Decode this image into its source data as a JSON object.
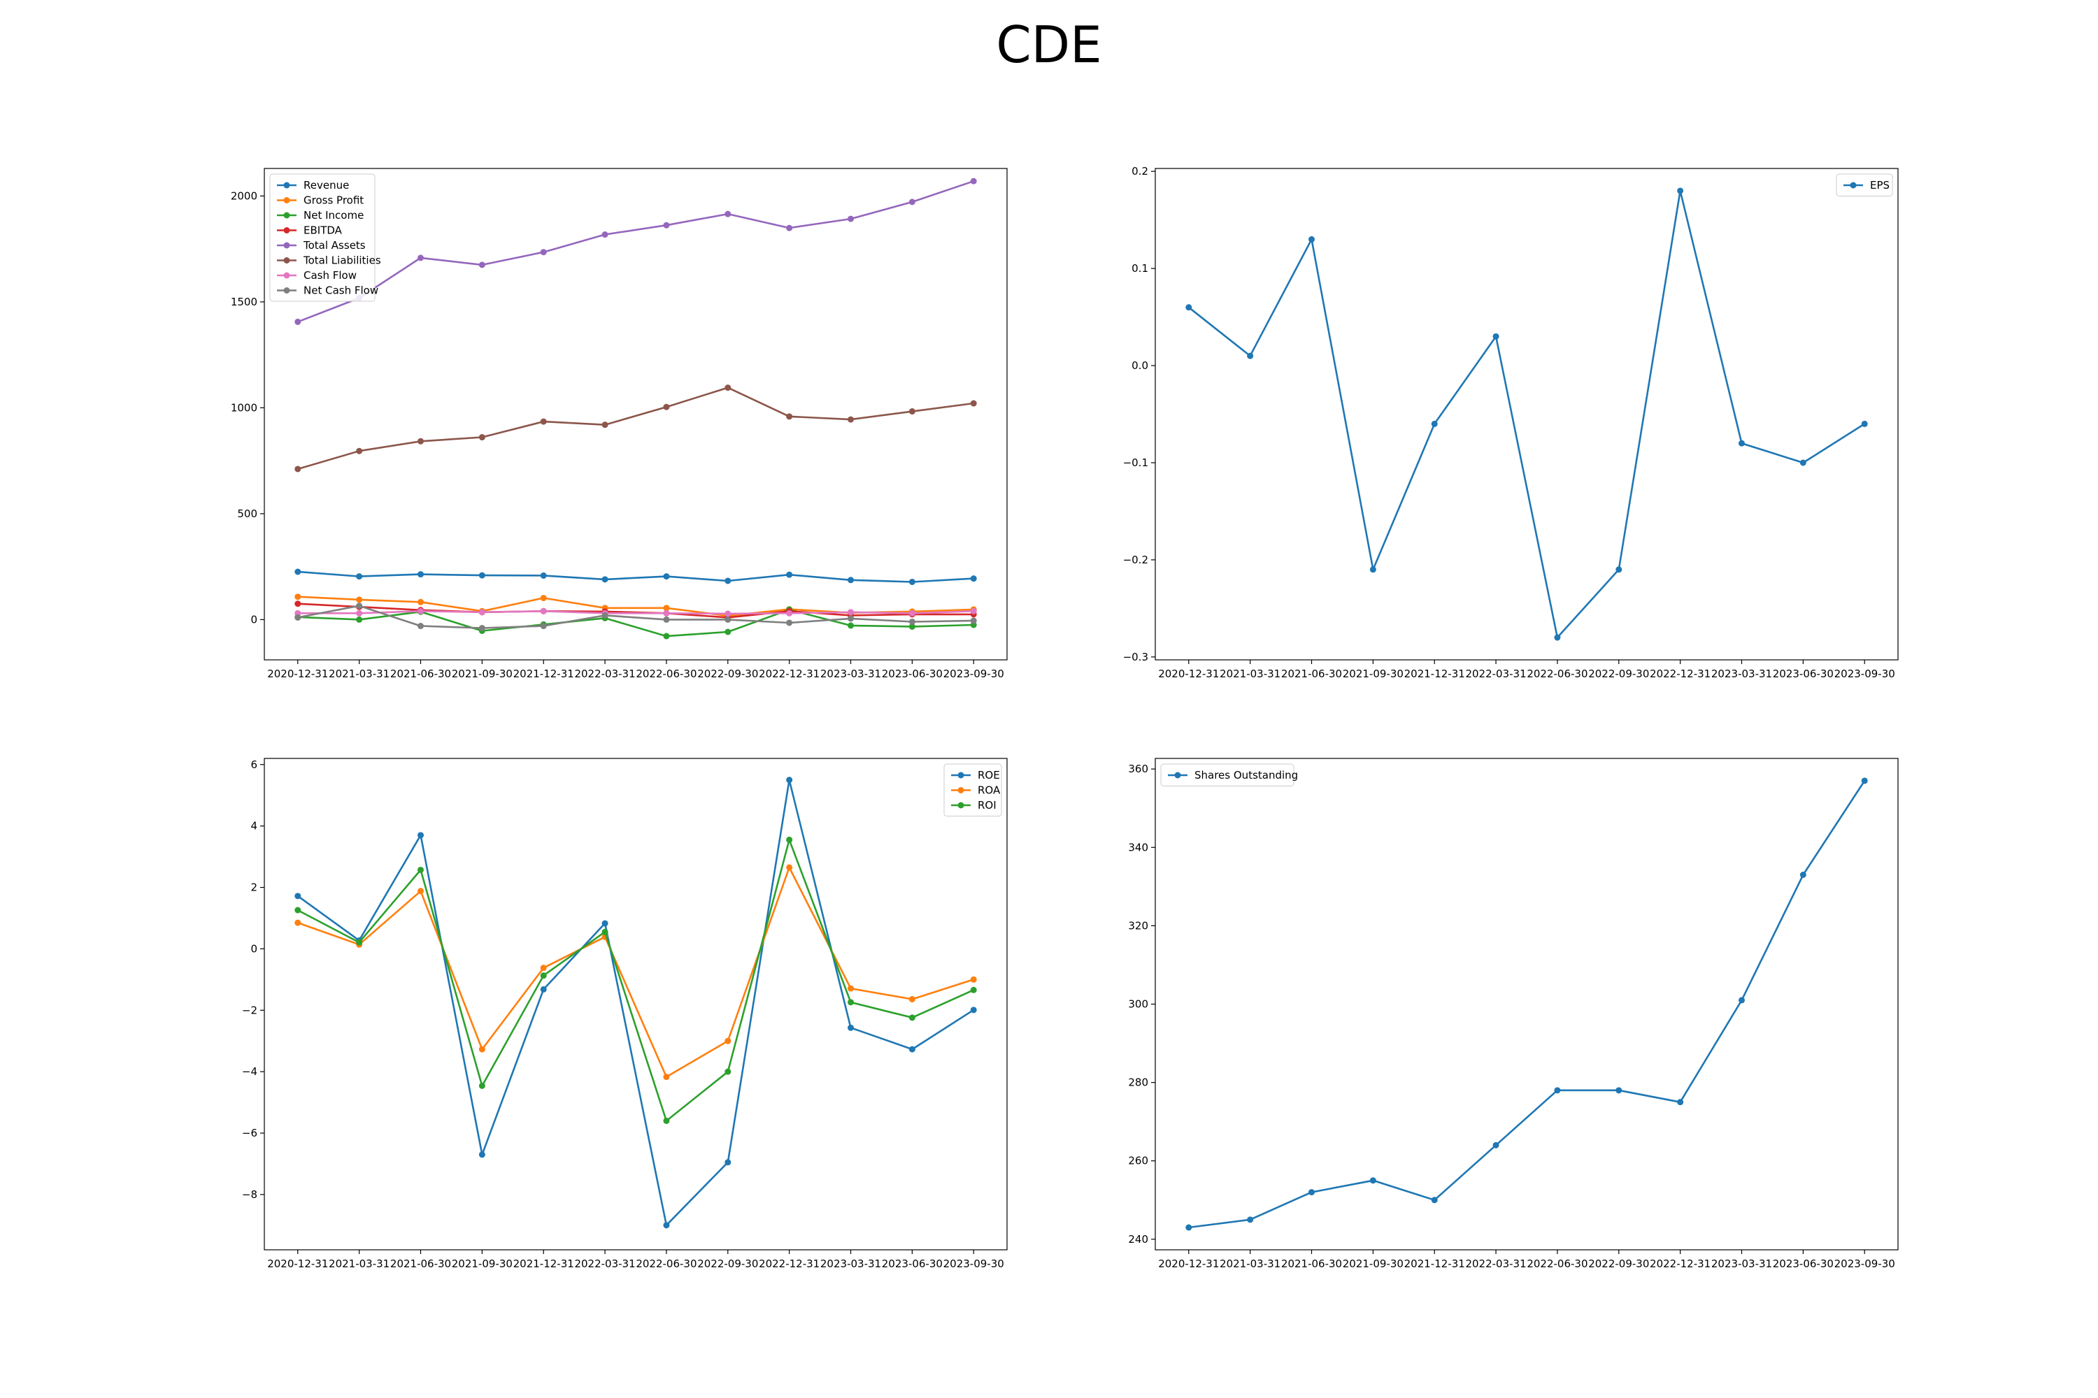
{
  "title": "CDE",
  "dates": [
    "2020-12-31",
    "2021-03-31",
    "2021-06-30",
    "2021-09-30",
    "2021-12-31",
    "2022-03-31",
    "2022-06-30",
    "2022-09-30",
    "2022-12-31",
    "2023-03-31",
    "2023-06-30",
    "2023-09-30"
  ],
  "chart_data": [
    {
      "type": "line",
      "x": [
        "2020-12-31",
        "2021-03-31",
        "2021-06-30",
        "2021-09-30",
        "2021-12-31",
        "2022-03-31",
        "2022-06-30",
        "2022-09-30",
        "2022-12-31",
        "2023-03-31",
        "2023-06-30",
        "2023-09-30"
      ],
      "ylim": [
        -190,
        2130
      ],
      "yticks": [
        0,
        500,
        1000,
        1500,
        2000
      ],
      "legend": "top-left",
      "series": [
        {
          "name": "Revenue",
          "color": "#1f77b4",
          "values": [
            226,
            204,
            214,
            209,
            208,
            190,
            204,
            183,
            212,
            187,
            178,
            194
          ]
        },
        {
          "name": "Gross Profit",
          "color": "#ff7f0e",
          "values": [
            108,
            94,
            83,
            40,
            102,
            55,
            55,
            18,
            49,
            32,
            38,
            48
          ]
        },
        {
          "name": "Net Income",
          "color": "#2ca02c",
          "values": [
            12,
            0,
            37,
            -53,
            -23,
            7,
            -78,
            -58,
            47,
            -28,
            -33,
            -25
          ]
        },
        {
          "name": "EBITDA",
          "color": "#d62728",
          "values": [
            75,
            60,
            45,
            35,
            40,
            38,
            30,
            10,
            40,
            20,
            25,
            25
          ]
        },
        {
          "name": "Total Assets",
          "color": "#9467bd",
          "values": [
            1406,
            1518,
            1708,
            1675,
            1735,
            1818,
            1862,
            1915,
            1849,
            1892,
            1972,
            2070
          ]
        },
        {
          "name": "Total Liabilities",
          "color": "#8c564b",
          "values": [
            711,
            796,
            842,
            861,
            935,
            920,
            1004,
            1095,
            959,
            945,
            983,
            1021
          ]
        },
        {
          "name": "Cash Flow",
          "color": "#e377c2",
          "values": [
            30,
            30,
            40,
            35,
            40,
            30,
            30,
            28,
            30,
            35,
            30,
            40
          ]
        },
        {
          "name": "Net Cash Flow",
          "color": "#7f7f7f",
          "values": [
            10,
            65,
            -30,
            -40,
            -30,
            20,
            0,
            0,
            -15,
            5,
            -10,
            -5
          ]
        }
      ]
    },
    {
      "type": "line",
      "x": [
        "2020-12-31",
        "2021-03-31",
        "2021-06-30",
        "2021-09-30",
        "2021-12-31",
        "2022-03-31",
        "2022-06-30",
        "2022-09-30",
        "2022-12-31",
        "2023-03-31",
        "2023-06-30",
        "2023-09-30"
      ],
      "ylim": [
        -0.303,
        0.203
      ],
      "yticks": [
        -0.3,
        -0.2,
        -0.1,
        0.0,
        0.1,
        0.2
      ],
      "ytick_labels": [
        "−0.3",
        "−0.2",
        "−0.1",
        "0.0",
        "0.1",
        "0.2"
      ],
      "legend": "top-right",
      "series": [
        {
          "name": "EPS",
          "color": "#1f77b4",
          "values": [
            0.06,
            0.01,
            0.13,
            -0.21,
            -0.06,
            0.03,
            -0.28,
            -0.21,
            0.18,
            -0.08,
            -0.1,
            -0.06
          ]
        }
      ]
    },
    {
      "type": "line",
      "x": [
        "2020-12-31",
        "2021-03-31",
        "2021-06-30",
        "2021-09-30",
        "2021-12-31",
        "2022-03-31",
        "2022-06-30",
        "2022-09-30",
        "2022-12-31",
        "2023-03-31",
        "2023-06-30",
        "2023-09-30"
      ],
      "ylim": [
        -9.8,
        6.2
      ],
      "yticks": [
        -8,
        -6,
        -4,
        -2,
        0,
        2,
        4,
        6
      ],
      "ytick_labels": [
        "−8",
        "−6",
        "−4",
        "−2",
        "0",
        "2",
        "4",
        "6"
      ],
      "legend": "top-right",
      "series": [
        {
          "name": "ROE",
          "color": "#1f77b4",
          "values": [
            1.72,
            0.27,
            3.7,
            -6.7,
            -1.32,
            0.83,
            -9.0,
            -6.95,
            5.5,
            -2.57,
            -3.27,
            -1.99
          ]
        },
        {
          "name": "ROA",
          "color": "#ff7f0e",
          "values": [
            0.85,
            0.14,
            1.88,
            -3.27,
            -0.62,
            0.39,
            -4.17,
            -3.0,
            2.65,
            -1.29,
            -1.64,
            -1.0
          ]
        },
        {
          "name": "ROI",
          "color": "#2ca02c",
          "values": [
            1.26,
            0.21,
            2.57,
            -4.46,
            -0.87,
            0.55,
            -5.6,
            -4.0,
            3.55,
            -1.74,
            -2.24,
            -1.34
          ]
        }
      ]
    },
    {
      "type": "line",
      "x": [
        "2020-12-31",
        "2021-03-31",
        "2021-06-30",
        "2021-09-30",
        "2021-12-31",
        "2022-03-31",
        "2022-06-30",
        "2022-09-30",
        "2022-12-31",
        "2023-03-31",
        "2023-06-30",
        "2023-09-30"
      ],
      "ylim": [
        237.3,
        362.7
      ],
      "yticks": [
        240,
        260,
        280,
        300,
        320,
        340,
        360
      ],
      "legend": "top-left",
      "series": [
        {
          "name": "Shares Outstanding",
          "color": "#1f77b4",
          "values": [
            243,
            245,
            252,
            255,
            250,
            264,
            278,
            278,
            275,
            301,
            333,
            357
          ]
        }
      ]
    }
  ]
}
